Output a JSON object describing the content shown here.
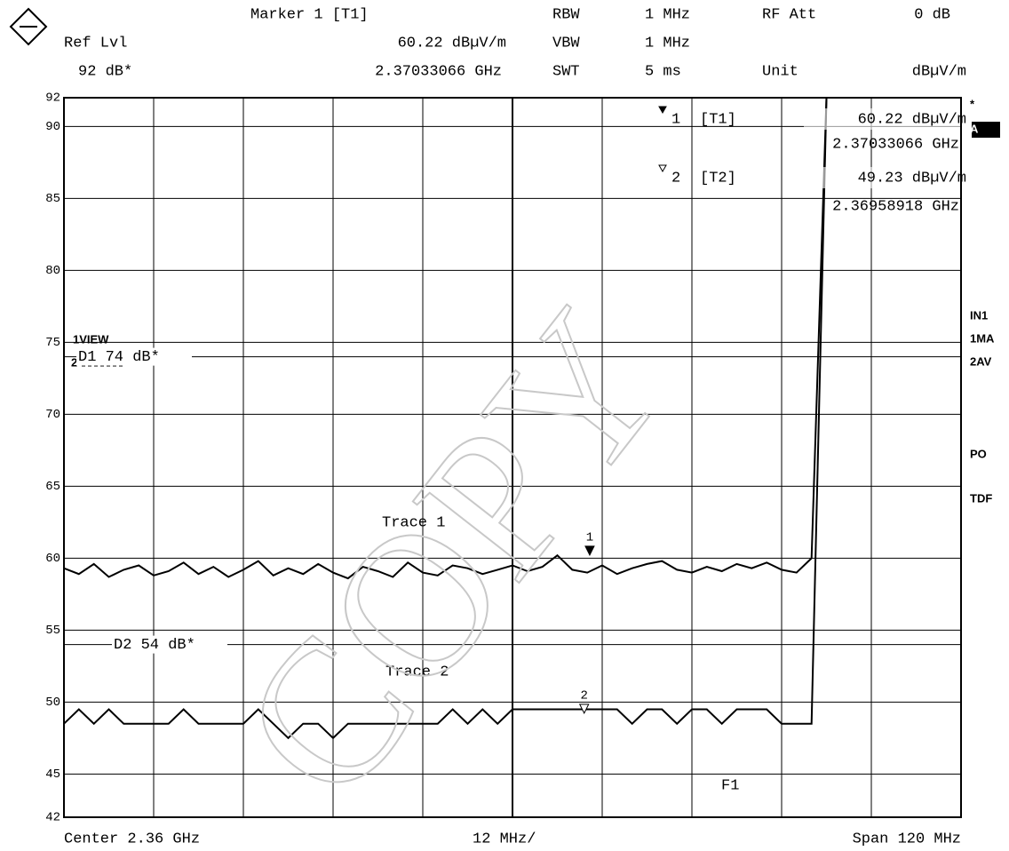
{
  "chart_data": {
    "type": "line",
    "header": {
      "marker_title": "Marker 1 [T1]",
      "ref_lvl_label": "Ref Lvl",
      "ref_lvl_value": "92 dB*",
      "marker_level": "60.22 dBµV/m",
      "marker_freq": "2.37033066 GHz",
      "rbw_label": "RBW",
      "rbw_value": "1 MHz",
      "vbw_label": "VBW",
      "vbw_value": "1 MHz",
      "swt_label": "SWT",
      "swt_value": "5 ms",
      "att_label": "RF Att",
      "att_value": "0 dB",
      "unit_label": "Unit",
      "unit_value": "dBµV/m"
    },
    "footer": {
      "center": "Center 2.36 GHz",
      "div": "12 MHz/",
      "span": "Span 120 MHz"
    },
    "side_labels": [
      "*",
      "A",
      "IN1",
      "1MA",
      "2AV",
      "PO",
      "TDF"
    ],
    "view_label": "1VIEW",
    "view_trace": "2",
    "watermark": "COPY",
    "annotations": [
      "Trace 1",
      "Trace 2",
      "F1"
    ],
    "xlim": [
      2.3,
      2.42
    ],
    "vertical_divisions": 10,
    "ylim": [
      42,
      92
    ],
    "yticks": [
      92,
      90,
      85,
      80,
      75,
      70,
      65,
      60,
      55,
      50,
      45,
      42
    ],
    "grid": true,
    "x": [
      2.3,
      2.302,
      2.304,
      2.306,
      2.308,
      2.31,
      2.312,
      2.314,
      2.316,
      2.318,
      2.32,
      2.322,
      2.324,
      2.326,
      2.328,
      2.33,
      2.332,
      2.334,
      2.336,
      2.338,
      2.34,
      2.342,
      2.344,
      2.346,
      2.348,
      2.35,
      2.352,
      2.354,
      2.356,
      2.358,
      2.36,
      2.362,
      2.364,
      2.366,
      2.368,
      2.37,
      2.372,
      2.374,
      2.376,
      2.378,
      2.38,
      2.382,
      2.384,
      2.386,
      2.388,
      2.39,
      2.392,
      2.394,
      2.396,
      2.398,
      2.4,
      2.402,
      2.42
    ],
    "series": [
      {
        "name": "Trace 1",
        "color": "#000000",
        "values": [
          59.3,
          58.9,
          59.6,
          58.7,
          59.2,
          59.5,
          58.8,
          59.1,
          59.7,
          58.9,
          59.4,
          58.7,
          59.2,
          59.8,
          58.8,
          59.3,
          58.9,
          59.6,
          59.0,
          58.6,
          59.4,
          59.1,
          58.7,
          59.7,
          59.0,
          58.8,
          59.5,
          59.3,
          58.9,
          59.2,
          59.5,
          59.1,
          59.4,
          60.2,
          59.2,
          59.0,
          59.5,
          58.9,
          59.3,
          59.6,
          59.8,
          59.2,
          59.0,
          59.4,
          59.1,
          59.6,
          59.3,
          59.7,
          59.2,
          59.0,
          60.0,
          92,
          92
        ]
      },
      {
        "name": "Trace 2",
        "color": "#000000",
        "values": [
          48.5,
          49.5,
          48.5,
          49.5,
          48.5,
          48.5,
          48.5,
          48.5,
          49.5,
          48.5,
          48.5,
          48.5,
          48.5,
          49.5,
          48.5,
          47.5,
          48.5,
          48.5,
          47.5,
          48.5,
          48.5,
          48.5,
          48.5,
          48.5,
          48.5,
          48.5,
          49.5,
          48.5,
          49.5,
          48.5,
          49.5,
          49.5,
          49.5,
          49.5,
          49.5,
          49.5,
          49.5,
          49.5,
          48.5,
          49.5,
          49.5,
          48.5,
          49.5,
          49.5,
          48.5,
          49.5,
          49.5,
          49.5,
          48.5,
          48.5,
          48.5,
          92,
          92
        ]
      }
    ],
    "display_lines": [
      {
        "label": "D1 74 dB*",
        "value": 74
      },
      {
        "label": "D2 54 dB*",
        "value": 54
      }
    ],
    "markers": [
      {
        "number": "1",
        "name": "[T1]",
        "x": 2.37033066,
        "y": 60.22,
        "y_label": "60.22 dBµV/m",
        "x_label": "2.37033066 GHz",
        "filled": true
      },
      {
        "number": "2",
        "name": "[T2]",
        "x": 2.36958918,
        "y": 49.23,
        "y_label": "49.23 dBµV/m",
        "x_label": "2.36958918 GHz",
        "filled": false
      }
    ]
  }
}
